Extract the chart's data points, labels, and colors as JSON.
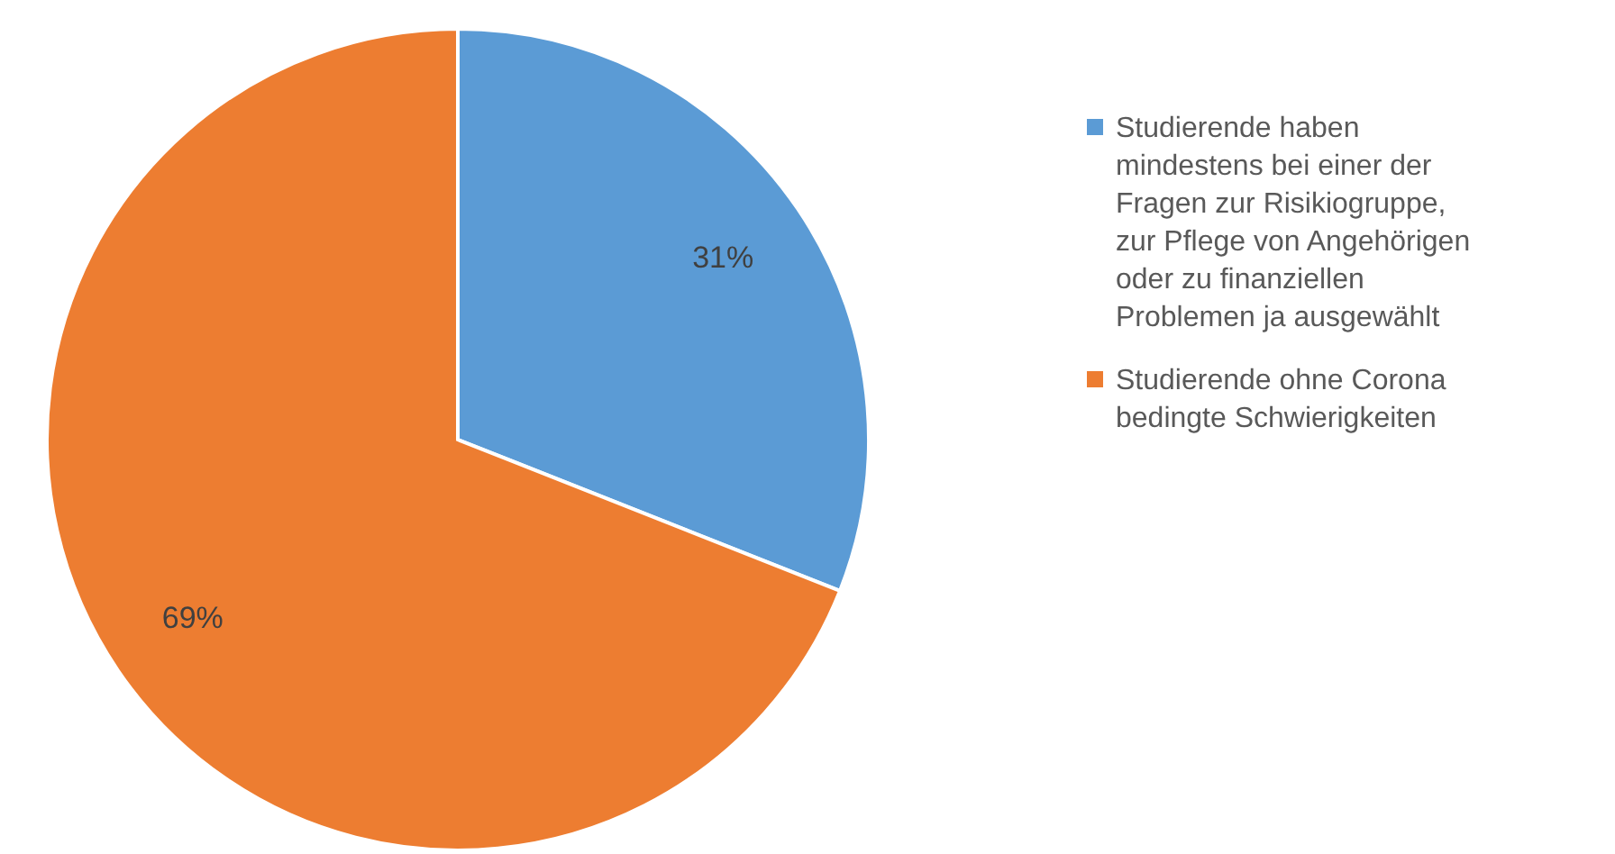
{
  "chart_data": {
    "type": "pie",
    "categories": [
      "Studierende haben mindestens bei einer der Fragen zur Risikiogruppe, zur Pflege von Angehörigen oder zu finanziellen Problemen ja ausgewählt",
      "Studierende ohne Corona bedingte Schwierigkeiten"
    ],
    "values": [
      31,
      69
    ],
    "colors": [
      "#5b9bd5",
      "#ed7d31"
    ],
    "value_labels": [
      "31%",
      "69%"
    ],
    "legend": "right"
  }
}
